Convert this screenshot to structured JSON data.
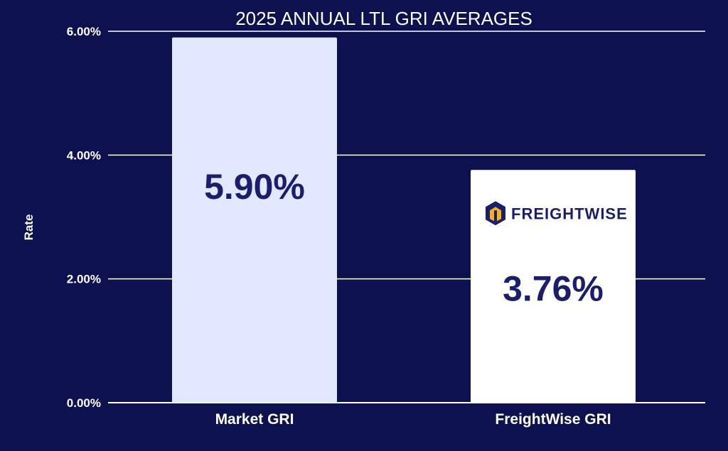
{
  "chart_data": {
    "type": "bar",
    "title": "2025 ANNUAL LTL GRI AVERAGES",
    "xlabel": "",
    "ylabel": "Rate",
    "ylim": [
      0,
      6
    ],
    "yticks": [
      0,
      2,
      4,
      6
    ],
    "ytick_labels": [
      "0.00%",
      "2.00%",
      "4.00%",
      "6.00%"
    ],
    "categories": [
      "Market GRI",
      "FreightWise GRI"
    ],
    "values": [
      5.9,
      3.76
    ],
    "value_labels": [
      "5.90%",
      "3.76%"
    ],
    "bar_colors": [
      "#e1e8ff",
      "#ffffff"
    ],
    "grid": true,
    "legend": "none",
    "annotations": [
      {
        "category": "FreightWise GRI",
        "type": "logo",
        "text": "FREIGHTWISE",
        "icon": "freightwise-logo-icon"
      }
    ]
  },
  "colors": {
    "background": "#0d1150",
    "grid": "#ffffff",
    "text": "#ffffff",
    "value_text": "#1b1f6b",
    "logo_accent": "#f2b21b"
  }
}
